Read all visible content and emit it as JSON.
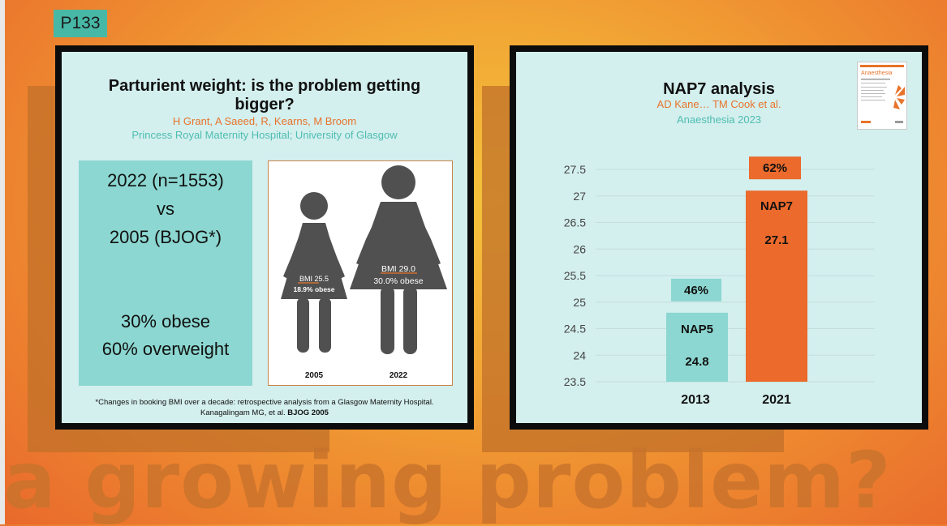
{
  "tag": "P133",
  "watermark": "a growing problem?",
  "left_panel": {
    "title_line1": "Parturient weight: is the problem getting",
    "title_line2": "bigger?",
    "authors": "H Grant, A Saeed, R, Kearns, M Broom",
    "affiliation": "Princess Royal Maternity Hospital; University of Glasgow",
    "summary": {
      "line1": "2022 (n=1553)",
      "line2": "vs",
      "line3": "2005 (BJOG*)",
      "line4": "30% obese",
      "line5": "60% overweight"
    },
    "figures": [
      {
        "year": "2005",
        "bmi": "BMI 25.5",
        "obese": "18.9% obese"
      },
      {
        "year": "2022",
        "bmi": "BMI 29.0",
        "obese": "30.0% obese"
      }
    ],
    "footnote_line1": "*Changes in booking BMI over a decade: retrospective analysis from a Glasgow Maternity Hospital.",
    "footnote_line2_prefix": "Kanagalingam MG, et al. ",
    "footnote_line2_bold": "BJOG 2005"
  },
  "right_panel": {
    "title": "NAP7 analysis",
    "authors": "AD Kane… TM Cook et al.",
    "journal": "Anaesthesia 2023",
    "thumb_title": "Anaesthesia",
    "colors": {
      "nap5": "#8cd7d1",
      "nap7": "#eb6a2c"
    },
    "chart_data": {
      "type": "bar",
      "categories": [
        "2013",
        "2021"
      ],
      "series": [
        {
          "values": [
            24.8,
            27.1
          ]
        }
      ],
      "bar_labels": [
        "NAP5",
        "NAP7"
      ],
      "value_labels": [
        "24.8",
        "27.1"
      ],
      "percent_labels": [
        "46%",
        "62%"
      ],
      "yticks": [
        "27.5",
        "27",
        "26.5",
        "26",
        "25.5",
        "25",
        "24.5",
        "24",
        "23.5"
      ],
      "ylim": [
        23.5,
        27.5
      ]
    }
  }
}
